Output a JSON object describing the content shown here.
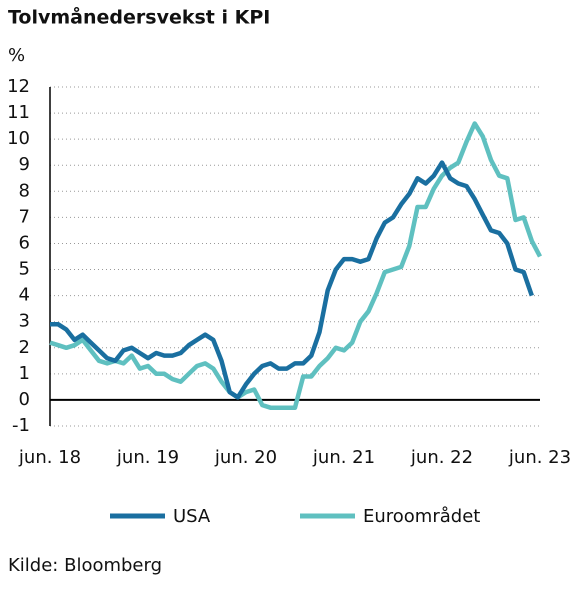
{
  "chart_data": {
    "type": "line",
    "title": "Tolvmånedersvekst i KPI",
    "y_label": "%",
    "categories": [
      "jun. 18",
      null,
      null,
      null,
      null,
      null,
      null,
      null,
      null,
      null,
      null,
      null,
      "jun. 19",
      null,
      null,
      null,
      null,
      null,
      null,
      null,
      null,
      null,
      null,
      null,
      "jun. 20",
      null,
      null,
      null,
      null,
      null,
      null,
      null,
      null,
      null,
      null,
      null,
      "jun. 21",
      null,
      null,
      null,
      null,
      null,
      null,
      null,
      null,
      null,
      null,
      null,
      "jun. 22",
      null,
      null,
      null,
      null,
      null,
      null,
      null,
      null,
      null,
      null,
      null,
      "jun. 23"
    ],
    "series": [
      {
        "name": "USA",
        "color": "#1a6fa0",
        "values": [
          2.9,
          2.9,
          2.7,
          2.3,
          2.5,
          2.2,
          1.9,
          1.6,
          1.5,
          1.9,
          2.0,
          1.8,
          1.6,
          1.8,
          1.7,
          1.7,
          1.8,
          2.1,
          2.3,
          2.5,
          2.3,
          1.5,
          0.3,
          0.1,
          0.6,
          1.0,
          1.3,
          1.4,
          1.2,
          1.2,
          1.4,
          1.4,
          1.7,
          2.6,
          4.2,
          5.0,
          5.4,
          5.4,
          5.3,
          5.4,
          6.2,
          6.8,
          7.0,
          7.5,
          7.9,
          8.5,
          8.3,
          8.6,
          9.1,
          8.5,
          8.3,
          8.2,
          7.7,
          7.1,
          6.5,
          6.4,
          6.0,
          5.0,
          4.9,
          4.0,
          null
        ]
      },
      {
        "name": "Euroområdet",
        "color": "#5fc0c0",
        "values": [
          2.2,
          2.1,
          2.0,
          2.1,
          2.3,
          1.9,
          1.5,
          1.4,
          1.5,
          1.4,
          1.7,
          1.2,
          1.3,
          1.0,
          1.0,
          0.8,
          0.7,
          1.0,
          1.3,
          1.4,
          1.2,
          0.7,
          0.3,
          0.1,
          0.3,
          0.4,
          -0.2,
          -0.3,
          -0.3,
          -0.3,
          -0.3,
          0.9,
          0.9,
          1.3,
          1.6,
          2.0,
          1.9,
          2.2,
          3.0,
          3.4,
          4.1,
          4.9,
          5.0,
          5.1,
          5.9,
          7.4,
          7.4,
          8.1,
          8.6,
          8.9,
          9.1,
          9.9,
          10.6,
          10.1,
          9.2,
          8.6,
          8.5,
          6.9,
          7.0,
          6.1,
          5.5
        ]
      }
    ],
    "ylim": [
      -1,
      12
    ],
    "yticks": [
      -1,
      0,
      1,
      2,
      3,
      4,
      5,
      6,
      7,
      8,
      9,
      10,
      11,
      12
    ],
    "grid": true,
    "legend": "bottom",
    "source": "Kilde: Bloomberg"
  }
}
